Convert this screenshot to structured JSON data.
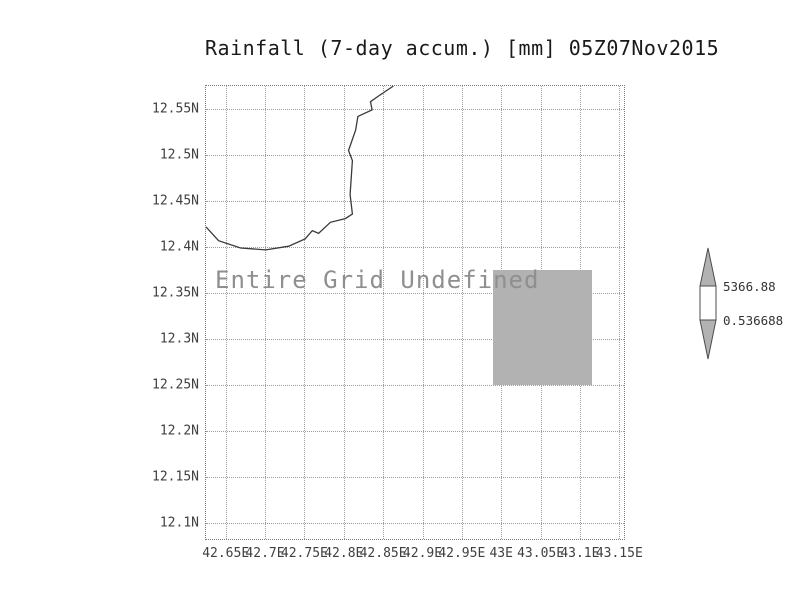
{
  "title": "Rainfall (7-day accum.) [mm] 05Z07Nov2015",
  "plot": {
    "annotation": "Entire Grid Undefined"
  },
  "colorbar": {
    "max_label": "5366.88",
    "min_label": "0.536688"
  },
  "colors": {
    "undefined_region": "#b2b2b2",
    "colorbar_cap": "#b2b2b2",
    "colorbar_cell": "#ffffff",
    "outline": "#4d4d4d",
    "grid": "#9e9e9e",
    "annotation_text": "#8f8f8f"
  },
  "chart_data": {
    "type": "heatmap",
    "title": "Rainfall (7-day accum.) [mm] 05Z07Nov2015",
    "xlabel": "",
    "ylabel": "",
    "x_tick_labels": [
      "42.65E",
      "42.7E",
      "42.75E",
      "42.8E",
      "42.85E",
      "42.9E",
      "42.95E",
      "43E",
      "43.05E",
      "43.1E",
      "43.15E"
    ],
    "y_tick_labels": [
      "12.55N",
      "12.5N",
      "12.45N",
      "12.4N",
      "12.35N",
      "12.3N",
      "12.25N",
      "12.2N",
      "12.15N",
      "12.1N"
    ],
    "xlim": [
      42.625,
      43.156
    ],
    "ylim": [
      12.083,
      12.575
    ],
    "grid": true,
    "legend_position": "right",
    "annotation": "Entire Grid Undefined",
    "undefined_region": {
      "lon1": 42.99,
      "lon2": 43.115,
      "lat1": 12.25,
      "lat2": 12.375,
      "color": "#b2b2b2"
    },
    "colorbar": {
      "max": 5366.88,
      "min": 0.536688
    },
    "coastline_lonlat": [
      [
        42.625,
        12.422
      ],
      [
        42.641,
        12.407
      ],
      [
        42.669,
        12.399
      ],
      [
        42.701,
        12.397
      ],
      [
        42.73,
        12.401
      ],
      [
        42.751,
        12.409
      ],
      [
        42.76,
        12.418
      ],
      [
        42.768,
        12.415
      ],
      [
        42.783,
        12.427
      ],
      [
        42.802,
        12.431
      ],
      [
        42.811,
        12.436
      ],
      [
        42.808,
        12.457
      ],
      [
        42.811,
        12.494
      ],
      [
        42.806,
        12.505
      ],
      [
        42.815,
        12.527
      ],
      [
        42.818,
        12.542
      ],
      [
        42.836,
        12.549
      ],
      [
        42.834,
        12.558
      ],
      [
        42.844,
        12.564
      ],
      [
        42.863,
        12.575
      ]
    ]
  }
}
